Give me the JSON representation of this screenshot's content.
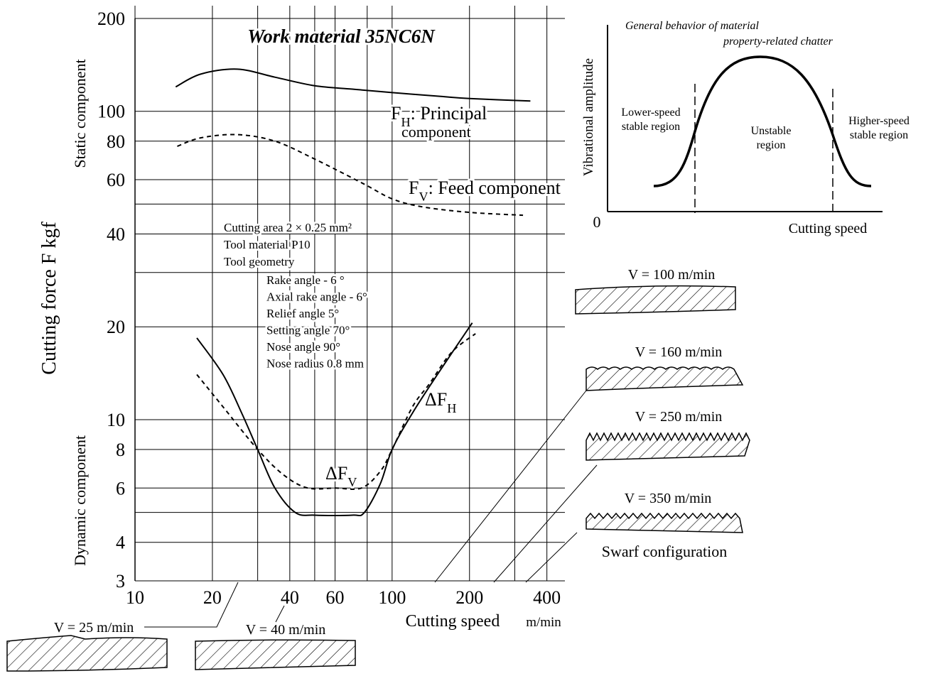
{
  "chart_data": {
    "type": "line",
    "title": "Work material  35NC6N",
    "ylabel": "Cutting force   F  kgf",
    "ylabel_upper": "Static component",
    "ylabel_lower": "Dynamic component",
    "xlabel": "Cutting speed",
    "xunit": "m/min",
    "xlog": true,
    "ylog": true,
    "xlim": [
      10,
      470
    ],
    "ylim": [
      3,
      200
    ],
    "xticks": [
      10,
      20,
      40,
      60,
      100,
      200,
      400
    ],
    "yticks": [
      3,
      4,
      6,
      8,
      10,
      20,
      40,
      60,
      80,
      100,
      200
    ],
    "x_minor_grid": [
      30,
      50,
      80,
      300
    ],
    "y_minor_grid": [
      5,
      30,
      50
    ],
    "color": "#000000",
    "series": [
      {
        "label": [
          "F",
          "H",
          ": Principal"
        ],
        "label_line2": "component",
        "dashed": false,
        "x": [
          14.4,
          18,
          25,
          35,
          50,
          70,
          100,
          150,
          200,
          345
        ],
        "y": [
          120,
          132,
          137,
          129,
          121,
          118,
          115,
          112,
          110,
          108
        ]
      },
      {
        "label": [
          "F",
          "V",
          ": Feed component"
        ],
        "dashed": true,
        "x": [
          14.6,
          18,
          25,
          35,
          50,
          78,
          100,
          131,
          200,
          323
        ],
        "y": [
          77,
          82,
          84,
          80,
          70,
          58,
          52,
          49,
          47,
          46
        ]
      },
      {
        "label": [
          "ΔF",
          "H"
        ],
        "dashed": false,
        "x": [
          17.4,
          22,
          26,
          30,
          35,
          42,
          50,
          70,
          78,
          90,
          100,
          120,
          150,
          205
        ],
        "y": [
          18.4,
          14,
          10.5,
          8,
          6,
          5,
          4.9,
          4.9,
          5,
          6.2,
          8,
          10.5,
          14,
          20.6
        ]
      },
      {
        "label": [
          "ΔF",
          "V"
        ],
        "dashed": true,
        "x": [
          17.4,
          22,
          30,
          38,
          47,
          60,
          76,
          90,
          100,
          120,
          140,
          170,
          211
        ],
        "y": [
          14,
          11,
          8,
          6.6,
          6,
          6,
          6,
          6.8,
          8,
          11,
          13.1,
          16.5,
          19
        ]
      }
    ],
    "conditions": [
      "Cutting area  2 × 0.25 mm²",
      "Tool material  P10",
      "Tool geometry"
    ],
    "geometry": [
      "Rake angle  - 6 °",
      "Axial rake angle  - 6°",
      "Relief angle  5°",
      "Setting angle  70°",
      "Nose angle  90°",
      "Nose radius  0.8 mm"
    ]
  },
  "inset": {
    "title": [
      "General behavior of material",
      "property-related chatter"
    ],
    "ylabel": "Vibrational amplitude",
    "xlabel": "Cutting speed",
    "origin": "0",
    "regions": [
      [
        "Lower-speed",
        "stable region"
      ],
      [
        "Unstable",
        "region"
      ],
      [
        "Higher-speed",
        "stable region"
      ]
    ]
  },
  "swarf": {
    "title": "Swarf configuration",
    "speeds": [
      "V = 100 m/min",
      "V = 160 m/min",
      "V = 250 m/min",
      "V = 350 m/min",
      "V = 25 m/min",
      "V = 40 m/min"
    ]
  }
}
